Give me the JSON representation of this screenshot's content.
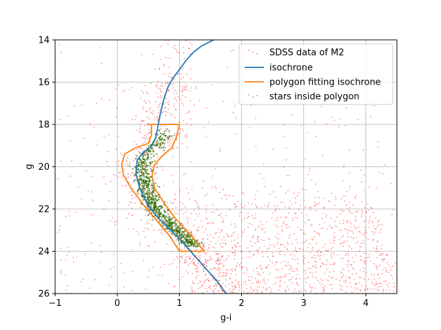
{
  "chart_data": {
    "type": "scatter",
    "title": "",
    "xlabel": "g-i",
    "ylabel": "g",
    "xlim": [
      -1,
      4.5
    ],
    "ylim": [
      26,
      14
    ],
    "y_inverted": true,
    "grid": true,
    "legend_placement": "top-right",
    "xticks": [
      -1,
      0,
      1,
      2,
      3,
      4
    ],
    "yticks": [
      14,
      16,
      18,
      20,
      22,
      24,
      26
    ],
    "colors": {
      "sdss": "#ff0000",
      "isochrone": "#1f77b4",
      "polygon": "#ff7f0e",
      "inside": "#2e6b00"
    },
    "series": [
      {
        "name": "SDSS data of M2",
        "kind": "points"
      },
      {
        "name": "isochrone",
        "kind": "line",
        "points": [
          [
            1.75,
            26.0
          ],
          [
            1.6,
            25.4
          ],
          [
            1.45,
            24.9
          ],
          [
            1.3,
            24.4
          ],
          [
            1.15,
            23.9
          ],
          [
            1.0,
            23.4
          ],
          [
            0.82,
            22.9
          ],
          [
            0.62,
            22.3
          ],
          [
            0.47,
            21.7
          ],
          [
            0.36,
            21.0
          ],
          [
            0.3,
            20.3
          ],
          [
            0.32,
            19.7
          ],
          [
            0.42,
            19.3
          ],
          [
            0.55,
            19.05
          ],
          [
            0.62,
            18.6
          ],
          [
            0.66,
            18.0
          ],
          [
            0.7,
            17.4
          ],
          [
            0.75,
            16.8
          ],
          [
            0.82,
            16.2
          ],
          [
            0.9,
            15.8
          ],
          [
            1.0,
            15.4
          ],
          [
            1.1,
            15.0
          ],
          [
            1.22,
            14.6
          ],
          [
            1.35,
            14.3
          ],
          [
            1.55,
            14.0
          ]
        ]
      },
      {
        "name": "polygon fitting isochrone",
        "kind": "line",
        "points": [
          [
            0.48,
            18.0
          ],
          [
            0.55,
            18.0
          ],
          [
            0.55,
            18.5
          ],
          [
            0.5,
            18.9
          ],
          [
            0.3,
            19.1
          ],
          [
            0.12,
            19.4
          ],
          [
            0.07,
            19.9
          ],
          [
            0.1,
            20.4
          ],
          [
            0.22,
            21.0
          ],
          [
            0.42,
            21.8
          ],
          [
            0.65,
            22.6
          ],
          [
            0.85,
            23.3
          ],
          [
            1.0,
            24.0
          ],
          [
            1.4,
            24.0
          ],
          [
            1.2,
            23.3
          ],
          [
            0.95,
            22.5
          ],
          [
            0.75,
            21.7
          ],
          [
            0.6,
            21.0
          ],
          [
            0.56,
            20.4
          ],
          [
            0.6,
            19.9
          ],
          [
            0.72,
            19.5
          ],
          [
            0.88,
            19.1
          ],
          [
            0.95,
            18.6
          ],
          [
            1.0,
            18.0
          ],
          [
            0.48,
            18.0
          ]
        ]
      },
      {
        "name": "stars inside polygon",
        "kind": "points"
      }
    ]
  }
}
